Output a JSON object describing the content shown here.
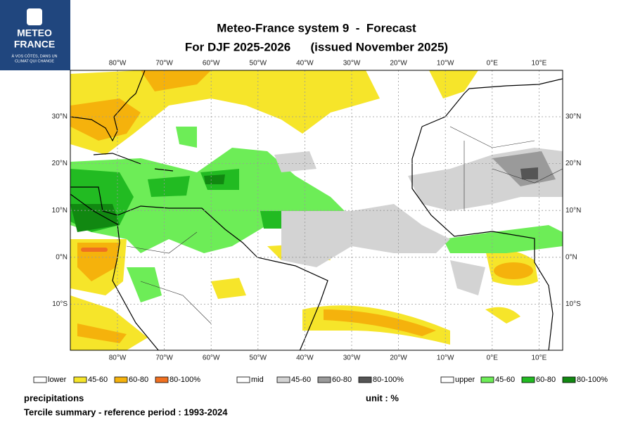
{
  "logo": {
    "name_line1": "METEO",
    "name_line2": "FRANCE",
    "tagline_line1": "À VOS CÔTÉS, DANS UN",
    "tagline_line2": "CLIMAT QUI CHANGE"
  },
  "header": {
    "title": "Meteo-France system 9  -  Forecast",
    "subtitle": "For DJF 2025-2026      (issued November 2025)"
  },
  "map": {
    "lon_labels": [
      "80°W",
      "70°W",
      "60°W",
      "50°W",
      "40°W",
      "30°W",
      "20°W",
      "10°W",
      "0°E",
      "10°E"
    ],
    "lat_labels": [
      "30°N",
      "20°N",
      "10°N",
      "0°N",
      "10°S"
    ]
  },
  "legend": [
    {
      "label": "lower",
      "classes": [
        "45-60",
        "60-80",
        "80-100%"
      ]
    },
    {
      "label": "mid",
      "classes": [
        "45-60",
        "60-80",
        "80-100%"
      ]
    },
    {
      "label": "upper",
      "classes": [
        "45-60",
        "60-80",
        "80-100%"
      ]
    }
  ],
  "footer": {
    "variable": "precipitations",
    "unit": "unit : %",
    "description": "Tercile summary - reference period : 1993-2024"
  }
}
